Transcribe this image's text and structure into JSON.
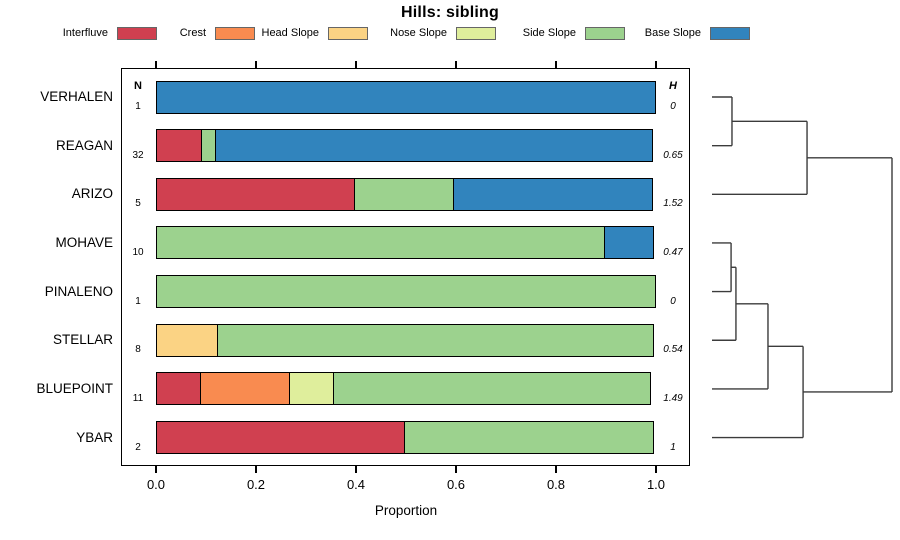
{
  "title": "Hills: sibling",
  "axis": {
    "label": "Proportion",
    "tick_labels": [
      "0.0",
      "0.2",
      "0.4",
      "0.6",
      "0.8",
      "1.0"
    ]
  },
  "columns": {
    "n_header": "N",
    "h_header": "H"
  },
  "legend": [
    {
      "label": "Interfluve",
      "color": "#D04050"
    },
    {
      "label": "Crest",
      "color": "#F98B50"
    },
    {
      "label": "Head Slope",
      "color": "#FBD384"
    },
    {
      "label": "Nose Slope",
      "color": "#DFEE9C"
    },
    {
      "label": "Side Slope",
      "color": "#9CD28E"
    },
    {
      "label": "Base Slope",
      "color": "#3184BD"
    }
  ],
  "chart_data": {
    "type": "bar",
    "subtype": "horizontal-stacked-proportion",
    "title": "Hills: sibling",
    "xlabel": "Proportion",
    "xlim": [
      0.0,
      1.0
    ],
    "xticks": [
      0.0,
      0.2,
      0.4,
      0.6,
      0.8,
      1.0
    ],
    "categories": [
      "Interfluve",
      "Crest",
      "Head Slope",
      "Nose Slope",
      "Side Slope",
      "Base Slope"
    ],
    "colors": [
      "#D04050",
      "#F98B50",
      "#FBD384",
      "#DFEE9C",
      "#9CD28E",
      "#3184BD"
    ],
    "legend_position": "top",
    "rows": [
      {
        "name": "VERHALEN",
        "n": "1",
        "h": "0",
        "segments": [
          {
            "category": "Base Slope",
            "value": 1.0
          }
        ]
      },
      {
        "name": "REAGAN",
        "n": "32",
        "h": "0.65",
        "segments": [
          {
            "category": "Interfluve",
            "value": 0.094
          },
          {
            "category": "Side Slope",
            "value": 0.031
          },
          {
            "category": "Base Slope",
            "value": 0.875
          }
        ]
      },
      {
        "name": "ARIZO",
        "n": "5",
        "h": "1.52",
        "segments": [
          {
            "category": "Interfluve",
            "value": 0.4
          },
          {
            "category": "Side Slope",
            "value": 0.2
          },
          {
            "category": "Base Slope",
            "value": 0.4
          }
        ]
      },
      {
        "name": "MOHAVE",
        "n": "10",
        "h": "0.47",
        "segments": [
          {
            "category": "Side Slope",
            "value": 0.9
          },
          {
            "category": "Base Slope",
            "value": 0.1
          }
        ]
      },
      {
        "name": "PINALENO",
        "n": "1",
        "h": "0",
        "segments": [
          {
            "category": "Side Slope",
            "value": 1.0
          }
        ]
      },
      {
        "name": "STELLAR",
        "n": "8",
        "h": "0.54",
        "segments": [
          {
            "category": "Head Slope",
            "value": 0.125
          },
          {
            "category": "Side Slope",
            "value": 0.875
          }
        ]
      },
      {
        "name": "BLUEPOINT",
        "n": "11",
        "h": "1.49",
        "segments": [
          {
            "category": "Interfluve",
            "value": 0.091
          },
          {
            "category": "Crest",
            "value": 0.182
          },
          {
            "category": "Nose Slope",
            "value": 0.091
          },
          {
            "category": "Side Slope",
            "value": 0.636
          }
        ]
      },
      {
        "name": "YBAR",
        "n": "2",
        "h": "1",
        "segments": [
          {
            "category": "Interfluve",
            "value": 0.5
          },
          {
            "category": "Side Slope",
            "value": 0.5
          }
        ]
      }
    ],
    "dendrogram": {
      "side": "right",
      "tree": {
        "height": 1.0,
        "children": [
          {
            "height": 0.528,
            "children": [
              {
                "height": 0.111,
                "children": [
                  {
                    "leaf": "VERHALEN"
                  },
                  {
                    "leaf": "REAGAN"
                  }
                ]
              },
              {
                "leaf": "ARIZO"
              }
            ]
          },
          {
            "height": 0.506,
            "children": [
              {
                "height": 0.311,
                "children": [
                  {
                    "height": 0.133,
                    "children": [
                      {
                        "height": 0.106,
                        "children": [
                          {
                            "leaf": "MOHAVE"
                          },
                          {
                            "leaf": "PINALENO"
                          }
                        ]
                      },
                      {
                        "leaf": "STELLAR"
                      }
                    ]
                  },
                  {
                    "leaf": "BLUEPOINT"
                  }
                ]
              },
              {
                "leaf": "YBAR"
              }
            ]
          }
        ]
      }
    }
  }
}
